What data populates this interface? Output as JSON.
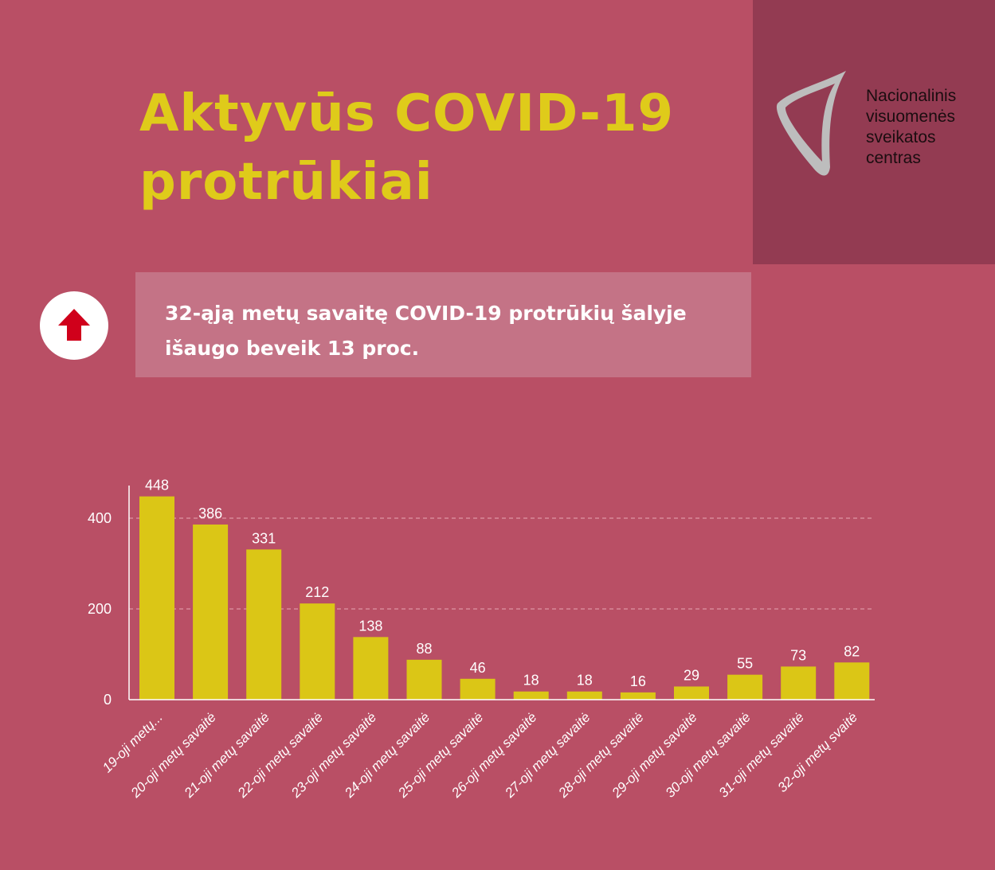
{
  "title_line1": "Aktyvūs COVID-19",
  "title_line2": "protrūkiai",
  "logo": {
    "line1": "Nacionalinis",
    "line2": "visuomenės",
    "line3": "sveikatos",
    "line4": "centras"
  },
  "callout": {
    "icon": "arrow-up-icon",
    "line1": "32-ąją metų savaitę COVID-19 protrūkių šalyje",
    "line2": "išaugo beveik 13 proc."
  },
  "colors": {
    "bar": "#dbc616",
    "background": "#b94f65",
    "accent": "#d0001b"
  },
  "chart_data": {
    "type": "bar",
    "title": "",
    "categories": [
      "19-oji metų...",
      "20-oji metų savaitė",
      "21-oji metų savaitė",
      "22-oji metų savaitė",
      "23-oji metų savaitė",
      "24-oji metų savaitė",
      "25-oji metų savaitė",
      "26-oji metų savaitė",
      "27-oji metų savaitė",
      "28-oji metų savaitė",
      "29-oji metų savaitė",
      "30-oji metų savaitė",
      "31-oji metų savaitė",
      "32-oji metų svaitė"
    ],
    "values": [
      448,
      386,
      331,
      212,
      138,
      88,
      46,
      18,
      18,
      16,
      29,
      55,
      73,
      82
    ],
    "yticks": [
      0,
      200,
      400
    ],
    "ylim": [
      0,
      470
    ],
    "grid": true,
    "xlabel": "",
    "ylabel": ""
  }
}
